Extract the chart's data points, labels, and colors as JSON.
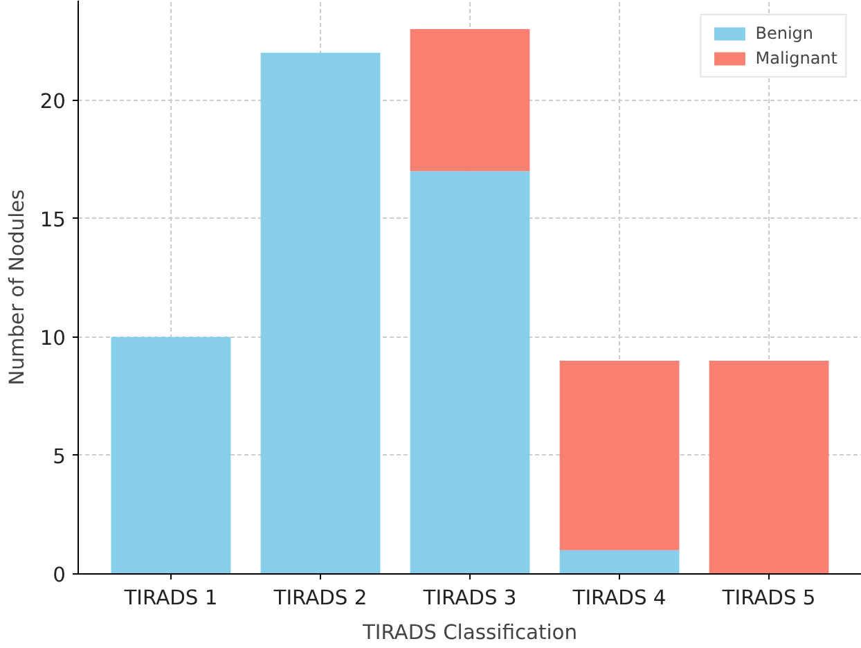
{
  "chart_data": {
    "type": "bar",
    "stacked": true,
    "xlabel": "TIRADS Classification",
    "ylabel": "Number of Nodules",
    "categories": [
      "TIRADS 1",
      "TIRADS 2",
      "TIRADS 3",
      "TIRADS 4",
      "TIRADS 5"
    ],
    "series": [
      {
        "name": "Benign",
        "color": "#87ceeb",
        "values": [
          10,
          22,
          17,
          1,
          0
        ]
      },
      {
        "name": "Malignant",
        "color": "#fa8072",
        "values": [
          0,
          0,
          6,
          8,
          9
        ]
      }
    ],
    "ylim": [
      0,
      24.2
    ],
    "yticks": [
      0,
      5,
      10,
      15,
      20
    ],
    "grid": true,
    "legend": "top right"
  }
}
